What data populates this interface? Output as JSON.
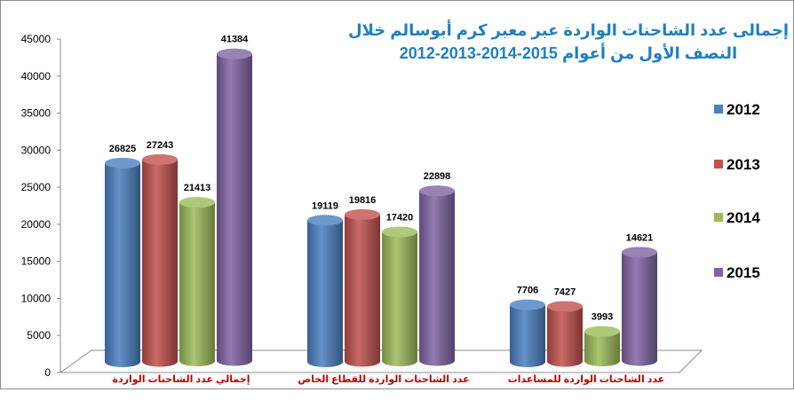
{
  "chart_data": {
    "type": "bar",
    "title_line1": "إجمالى عدد الشاحنات الواردة عبر معبر كرم أبوسالم خلال",
    "title_line2": "النصف الأول من أعوام 2015-2014-2013-2012",
    "categories": [
      "إجمالي عدد الشاحنات الواردة",
      "عدد الشاحنات الواردة للقطاع الخاص",
      "عدد الشاحنات الواردة للمساعدات"
    ],
    "series": [
      {
        "name": "2012",
        "values": [
          26825,
          19119,
          7706
        ],
        "color": "#4a7fc1"
      },
      {
        "name": "2013",
        "values": [
          27243,
          19816,
          7427
        ],
        "color": "#c0504d"
      },
      {
        "name": "2014",
        "values": [
          21413,
          17420,
          3993
        ],
        "color": "#9bbb59"
      },
      {
        "name": "2015",
        "values": [
          41384,
          22898,
          14621
        ],
        "color": "#8064a2"
      }
    ],
    "yticks": [
      "0",
      "5000",
      "10000",
      "15000",
      "20000",
      "25000",
      "30000",
      "35000",
      "40000",
      "45000"
    ],
    "ylim": [
      0,
      45000
    ],
    "grid": false,
    "legend_position": "right"
  }
}
